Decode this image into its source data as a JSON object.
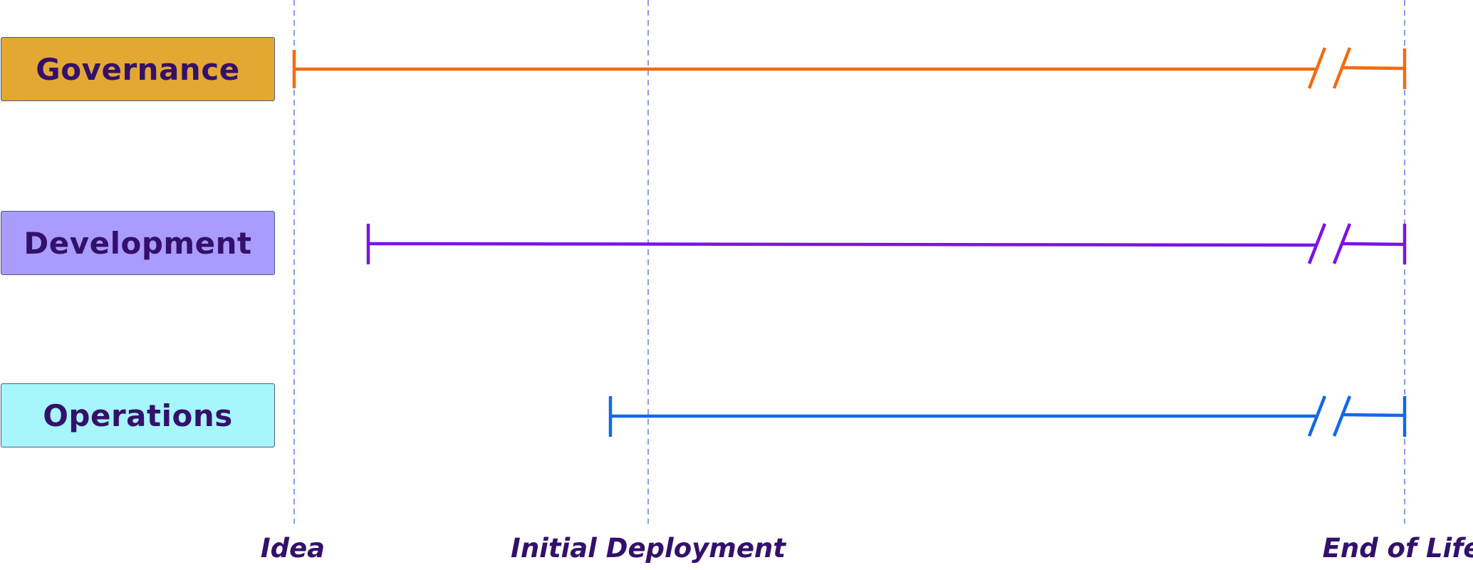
{
  "rows": [
    {
      "id": "governance",
      "label": "Governance",
      "fill": "#e3a832",
      "line_color": "#f26b13",
      "starts_at": "Idea",
      "ends_at": "End of Life"
    },
    {
      "id": "development",
      "label": "Development",
      "fill": "#a99cff",
      "line_color": "#7b13e3",
      "starts_at": "shortly after Idea",
      "ends_at": "End of Life"
    },
    {
      "id": "operations",
      "label": "Operations",
      "fill": "#a6f6fb",
      "line_color": "#1468e8",
      "starts_at": "shortly before Initial Deployment",
      "ends_at": "End of Life"
    }
  ],
  "milestones": [
    {
      "id": "idea",
      "label": "Idea"
    },
    {
      "id": "initial-deployment",
      "label": "Initial Deployment"
    },
    {
      "id": "end-of-life",
      "label": "End of Life"
    }
  ],
  "colors": {
    "text": "#34106b",
    "guide_line": "#8a9cf0"
  }
}
